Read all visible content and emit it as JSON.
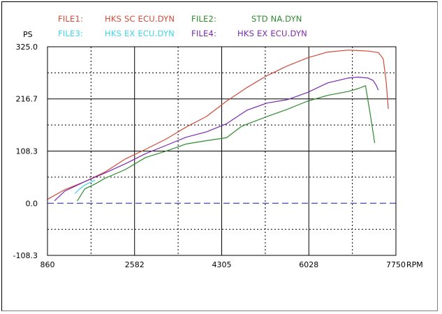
{
  "chart_data": {
    "type": "line",
    "y_unit_label": "PS",
    "x_unit_label": "RPM",
    "xlim": [
      860,
      7750
    ],
    "ylim": [
      -108.3,
      325.0
    ],
    "x_ticks": [
      "860",
      "2582",
      "4305",
      "6028",
      "7750"
    ],
    "y_ticks": [
      "325.0",
      "216.7",
      "108.3",
      "0.0",
      "-108.3"
    ],
    "grid": true,
    "legend": [
      {
        "key": "FILE1:",
        "name": "HKS  SC  ECU.DYN",
        "color": "#d04a3a"
      },
      {
        "key": "FILE2:",
        "name": "STD  NA.DYN",
        "color": "#2e8a2e"
      },
      {
        "key": "FILE3:",
        "name": "HKS  EX  ECU.DYN",
        "color": "#3fd4e6"
      },
      {
        "key": "FILE4:",
        "name": "HKS  EX  ECU.DYN",
        "color": "#7a2ab0"
      }
    ],
    "series": [
      {
        "name": "HKS  SC  ECU.DYN",
        "color": "#d04a3a",
        "x": [
          860,
          1200,
          1600,
          2000,
          2400,
          2800,
          3200,
          3600,
          4000,
          4400,
          4800,
          5200,
          5600,
          6000,
          6400,
          6800,
          7000,
          7200,
          7400,
          7500,
          7560,
          7600
        ],
        "y": [
          8,
          28,
          45,
          65,
          92,
          112,
          133,
          158,
          180,
          212,
          240,
          265,
          285,
          302,
          314,
          318,
          317,
          316,
          313,
          300,
          250,
          196
        ]
      },
      {
        "name": "STD  NA.DYN",
        "color": "#2e8a2e",
        "x": [
          1450,
          1600,
          1800,
          2000,
          2400,
          2800,
          3200,
          3600,
          4000,
          4400,
          4700,
          4900,
          5200,
          5600,
          6000,
          6400,
          6800,
          7000,
          7150,
          7250,
          7330
        ],
        "y": [
          5,
          30,
          40,
          52,
          70,
          95,
          108,
          123,
          130,
          136,
          160,
          168,
          180,
          195,
          212,
          224,
          232,
          238,
          244,
          180,
          125
        ]
      },
      {
        "name": "HKS  EX  ECU.DYN",
        "color": "#3fd4e6",
        "x": [
          1400,
          1500,
          1600,
          1800
        ],
        "y": [
          20,
          30,
          38,
          48
        ]
      },
      {
        "name": "HKS  EX  ECU.DYN",
        "color": "#7a2ab0",
        "x": [
          1000,
          1200,
          1400,
          1600,
          2000,
          2400,
          2800,
          3200,
          3600,
          4000,
          4400,
          4800,
          5200,
          5600,
          6000,
          6400,
          6800,
          7000,
          7200,
          7300,
          7360,
          7400
        ],
        "y": [
          5,
          25,
          35,
          45,
          63,
          82,
          103,
          120,
          137,
          148,
          165,
          193,
          208,
          215,
          230,
          250,
          260,
          262,
          260,
          255,
          245,
          235
        ]
      }
    ],
    "baseline": {
      "y": 0,
      "color": "#1a1aa0",
      "style": "dashed"
    }
  }
}
